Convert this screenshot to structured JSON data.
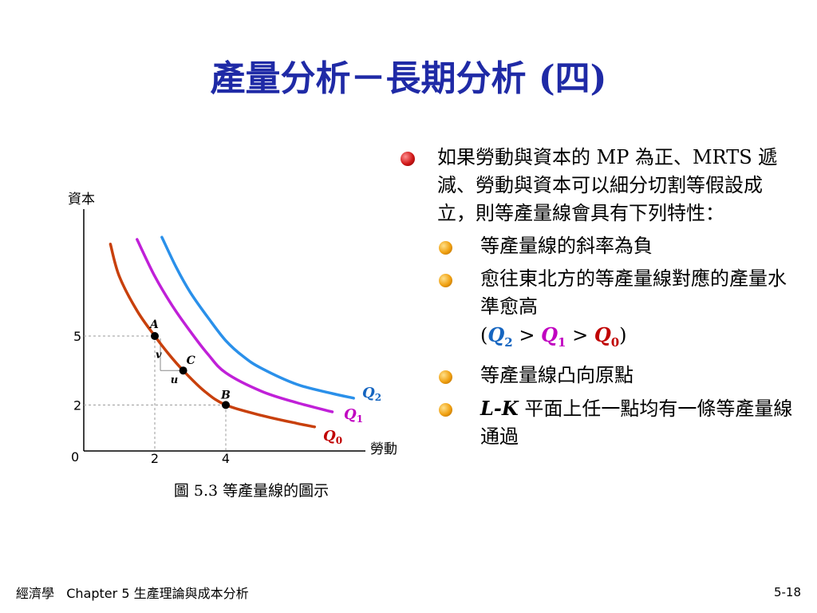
{
  "slide": {
    "title": "產量分析－長期分析 (四)",
    "caption": "圖 5.3 等產量線的圖示",
    "bullets": {
      "main": "如果勞動與資本的 MP 為正、MRTS 遞減、勞動與資本可以細分切割等假設成立，則等產量線會具有下列特性：",
      "sub1": "等產量線的斜率為負",
      "sub2_text": "愈往東北方的等產量線對應的產量水準愈高",
      "sub2_formula": {
        "open": "(",
        "q2": "Q",
        "q2_sub": "2",
        "gt1": " > ",
        "q1": "Q",
        "q1_sub": "1",
        "gt2": " > ",
        "q0": "Q",
        "q0_sub": "0",
        "close": ")"
      },
      "sub3": "等產量線凸向原點",
      "sub4_var": "L-K",
      "sub4_text": " 平面上任一點均有一條等產量線通過"
    },
    "footer": {
      "left": "經濟學   Chapter 5 生產理論與成本分析",
      "right": "5-18"
    }
  },
  "chart_data": {
    "type": "line",
    "xlabel": "勞動",
    "ylabel": "資本",
    "xticks": [
      "0",
      "2",
      "4"
    ],
    "yticks": [
      "5",
      "2"
    ],
    "series": [
      {
        "name": "Q0",
        "color": "#c8400c",
        "x": [
          0.75,
          1.0,
          1.5,
          2.0,
          2.4,
          2.8,
          3.4,
          4.0,
          5.0,
          6.0,
          6.5
        ],
        "y": [
          9.0,
          7.6,
          6.1,
          5.0,
          4.2,
          3.5,
          2.6,
          2.0,
          1.55,
          1.2,
          1.05
        ]
      },
      {
        "name": "Q1",
        "color": "#c020d8",
        "x": [
          1.5,
          2.0,
          2.5,
          3.0,
          3.5,
          4.0,
          5.0,
          6.0,
          7.0
        ],
        "y": [
          9.2,
          7.6,
          6.3,
          5.2,
          4.2,
          3.4,
          2.6,
          2.1,
          1.7
        ]
      },
      {
        "name": "Q2",
        "color": "#2a90ea",
        "x": [
          2.2,
          2.6,
          3.0,
          3.5,
          4.0,
          4.5,
          5.0,
          6.0,
          7.0,
          7.6
        ],
        "y": [
          9.3,
          8.0,
          6.9,
          5.8,
          4.8,
          4.1,
          3.6,
          2.9,
          2.5,
          2.3
        ]
      }
    ],
    "points": [
      {
        "label": "A",
        "x": 2.0,
        "y": 5.0
      },
      {
        "label": "C",
        "x": 2.8,
        "y": 3.5
      },
      {
        "label": "B",
        "x": 4.0,
        "y": 2.0
      }
    ],
    "step_labels": {
      "v": "v",
      "u": "u"
    },
    "curve_labels": [
      {
        "text": "Q",
        "sub": "2",
        "color": "#1565c0"
      },
      {
        "text": "Q",
        "sub": "1",
        "color": "#c000c0"
      },
      {
        "text": "Q",
        "sub": "0",
        "color": "#c00000"
      }
    ]
  }
}
